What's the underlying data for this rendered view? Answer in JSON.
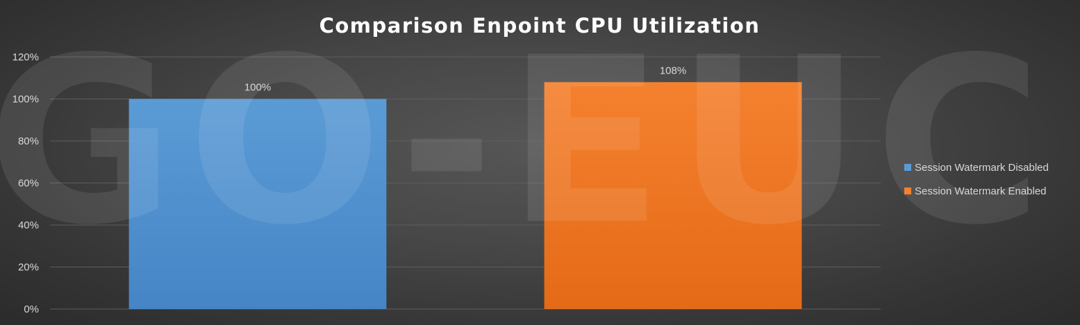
{
  "watermark": "GO-EUC",
  "colors": {
    "background": "#474747",
    "grid": "#5e5e5e",
    "text": "#d9d9d9",
    "title": "#ffffff"
  },
  "chart_data": {
    "type": "bar",
    "title": "Comparison Enpoint CPU Utilization",
    "xlabel": "",
    "ylabel": "",
    "ylim": [
      0,
      120
    ],
    "yticks": [
      0,
      20,
      40,
      60,
      80,
      100,
      120
    ],
    "ytick_labels": [
      "0%",
      "20%",
      "40%",
      "60%",
      "80%",
      "100%",
      "120%"
    ],
    "grid": true,
    "legend_position": "right",
    "series": [
      {
        "name": "Session Watermark Disabled",
        "values": [
          100
        ],
        "label": "100%",
        "color": "#5b9bd5",
        "color_dark": "#4585c6"
      },
      {
        "name": "Session Watermark Enabled",
        "values": [
          108
        ],
        "label": "108%",
        "color": "#f4812f",
        "color_dark": "#e56a17"
      }
    ]
  }
}
